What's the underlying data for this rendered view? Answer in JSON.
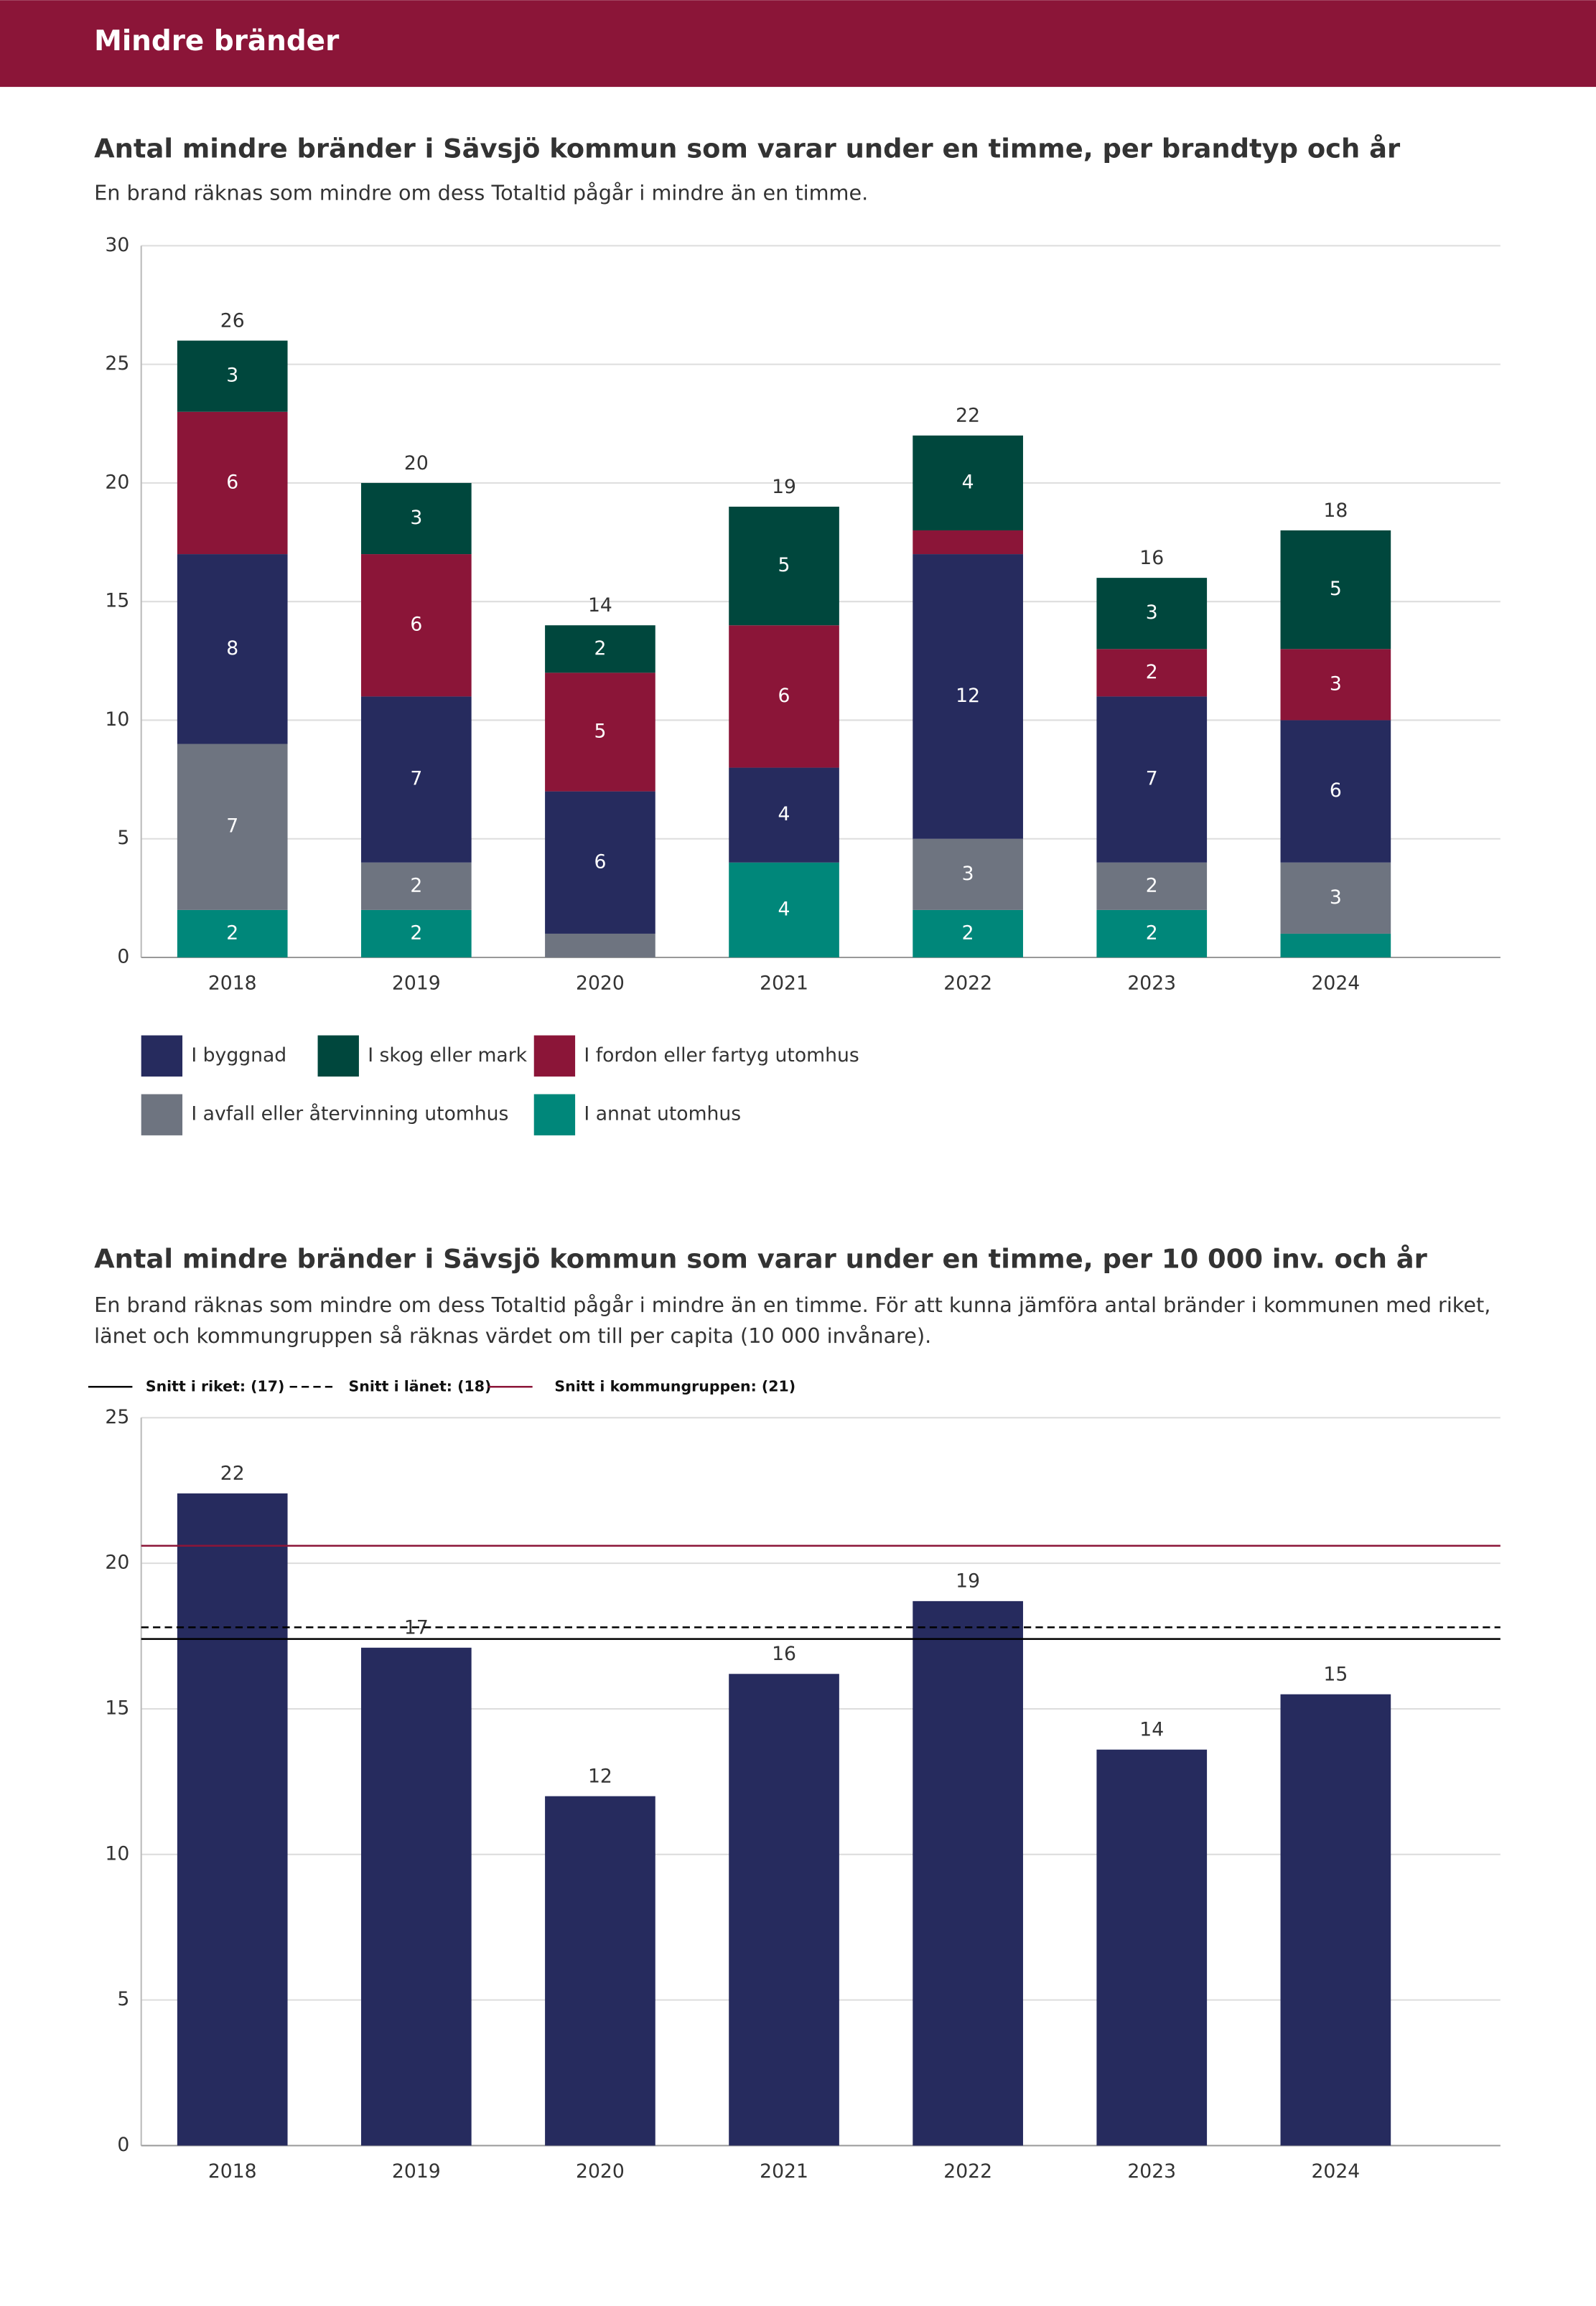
{
  "header": {
    "title": "Mindre bränder"
  },
  "chart_data": [
    {
      "type": "stacked-bar",
      "title": "Antal mindre bränder i Sävsjö kommun som varar under en timme, per brandtyp och år",
      "subtitle": "En brand räknas som mindre om dess Totaltid pågår i mindre än en timme.",
      "categories": [
        "2018",
        "2019",
        "2020",
        "2021",
        "2022",
        "2023",
        "2024"
      ],
      "series": [
        {
          "name": "I annat utomhus",
          "color": "#00877a",
          "values": [
            2,
            2,
            0,
            4,
            2,
            2,
            1
          ]
        },
        {
          "name": "I avfall eller återvinning utomhus",
          "color": "#6e7480",
          "values": [
            7,
            2,
            1,
            0,
            3,
            2,
            3
          ]
        },
        {
          "name": "I byggnad",
          "color": "#262b5e",
          "values": [
            8,
            7,
            6,
            4,
            12,
            7,
            6
          ]
        },
        {
          "name": "I fordon eller fartyg utomhus",
          "color": "#8b1538",
          "values": [
            6,
            6,
            5,
            6,
            1,
            2,
            3
          ]
        },
        {
          "name": "I skog eller mark",
          "color": "#00473d",
          "values": [
            3,
            3,
            2,
            5,
            4,
            3,
            5
          ]
        }
      ],
      "totals": [
        26,
        20,
        14,
        19,
        22,
        16,
        18
      ],
      "ylim": [
        0,
        30
      ],
      "yticks": [
        0,
        5,
        10,
        15,
        20,
        25,
        30
      ],
      "grid": true
    },
    {
      "type": "bar",
      "title": "Antal mindre bränder i Sävsjö kommun som varar under en timme, per 10 000 inv. och år",
      "subtitle": "En brand räknas som mindre om dess Totaltid pågår i mindre än en timme. För att kunna jämföra antal bränder i kommunen med riket, länet och kommungruppen så räknas värdet om till per capita (10 000 invånare).",
      "categories": [
        "2018",
        "2019",
        "2020",
        "2021",
        "2022",
        "2023",
        "2024"
      ],
      "values": [
        22.4,
        17.1,
        12.0,
        16.2,
        18.7,
        13.6,
        15.5
      ],
      "value_labels": [
        "22",
        "17",
        "12",
        "16",
        "19",
        "14",
        "15"
      ],
      "color": "#262b5e",
      "reference_lines": [
        {
          "name": "Snitt i riket: (17)",
          "value": 17.4,
          "color": "#000000",
          "dashed": false
        },
        {
          "name": "Snitt i länet: (18)",
          "value": 17.8,
          "color": "#000000",
          "dashed": true
        },
        {
          "name": "Snitt i kommungruppen: (21)",
          "value": 20.6,
          "color": "#8b1538",
          "dashed": false
        }
      ],
      "ylim": [
        0,
        25
      ],
      "yticks": [
        0,
        5,
        10,
        15,
        20,
        25
      ],
      "grid": true
    }
  ]
}
